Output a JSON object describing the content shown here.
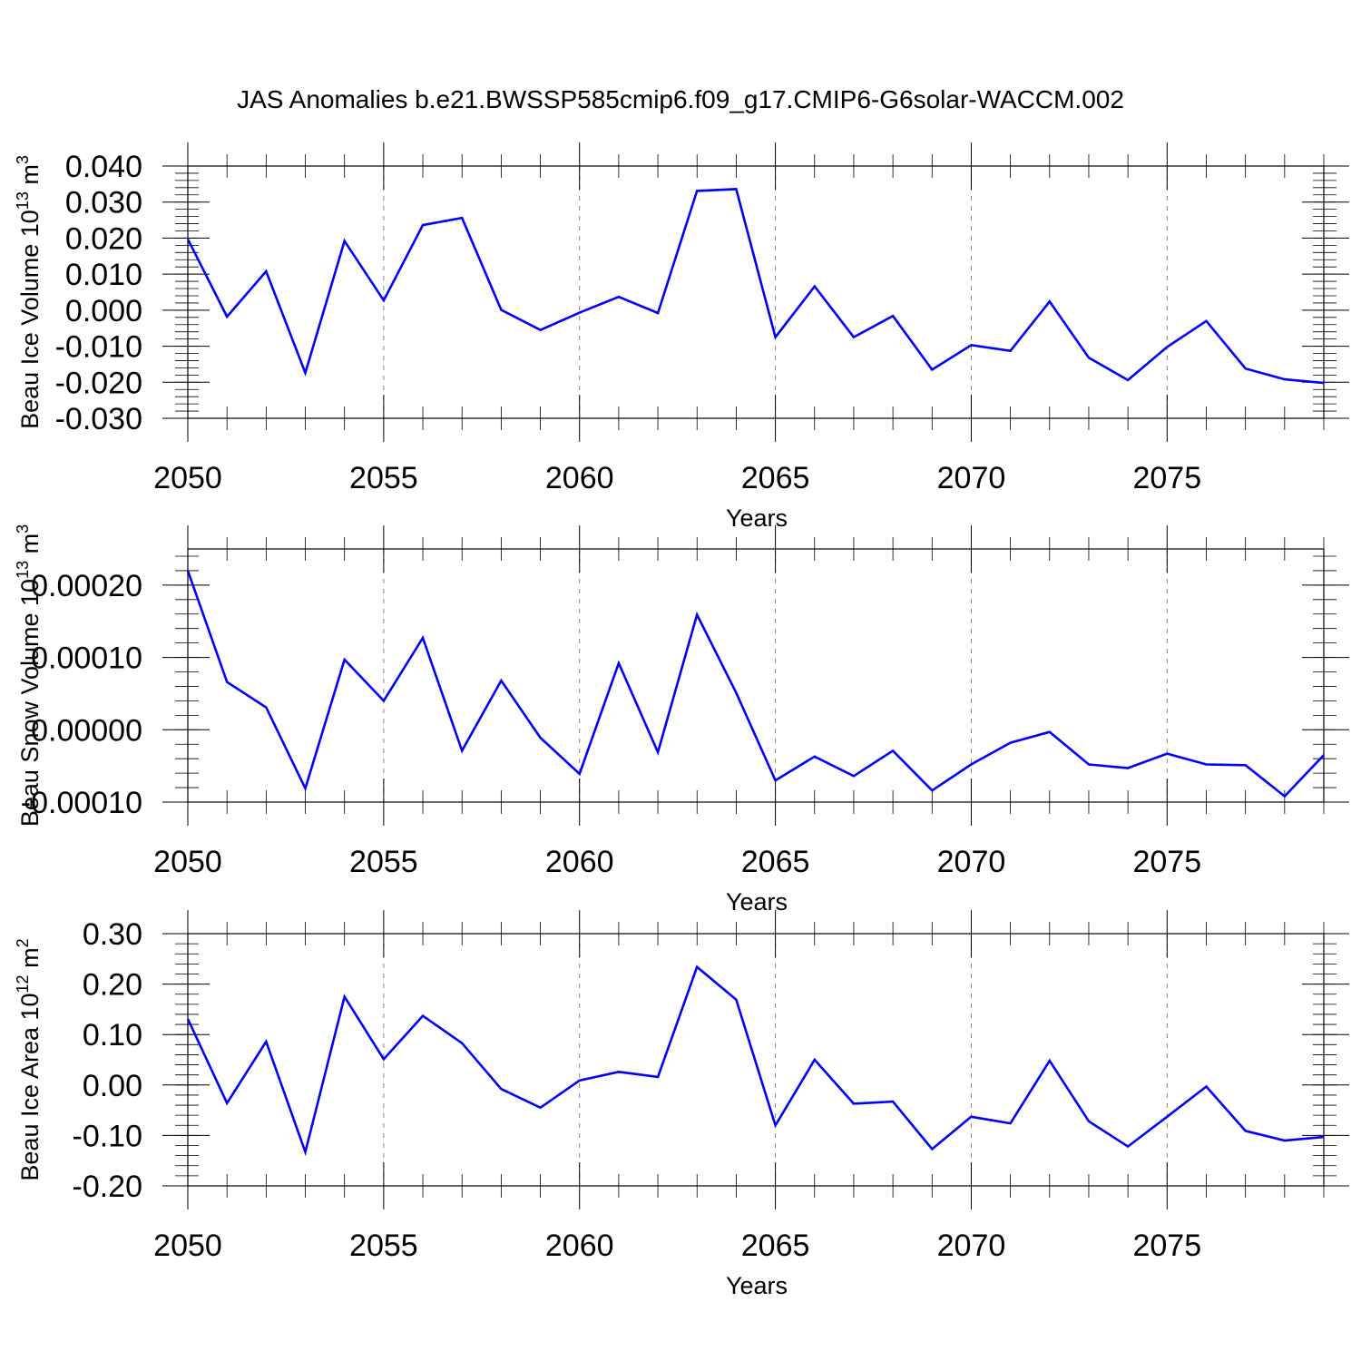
{
  "title": "JAS Anomalies b.e21.BWSSP585cmip6.f09_g17.CMIP6-G6solar-WACCM.002",
  "colors": {
    "line": "#0000ff",
    "grid": "#888888",
    "axis": "#000000"
  },
  "chart_data": [
    {
      "type": "line",
      "xlabel": "Years",
      "ylabel": {
        "main": "Beau Ice Volume 10",
        "exp": "13",
        "unit": " m",
        "unit_exp": "3"
      },
      "xlim": [
        2050,
        2079
      ],
      "ylim": [
        -0.03,
        0.04
      ],
      "x_major_ticks": [
        2050,
        2055,
        2060,
        2065,
        2070,
        2075
      ],
      "x_tick_labels": [
        "2050",
        "2055",
        "2060",
        "2065",
        "2070",
        "2075"
      ],
      "y_major_ticks": [
        0.04,
        0.03,
        0.02,
        0.01,
        0.0,
        -0.01,
        -0.02,
        -0.03
      ],
      "y_tick_labels": [
        "0.040",
        "0.030",
        "0.020",
        "0.010",
        "0.000",
        "-0.010",
        "-0.020",
        "-0.030"
      ],
      "y_minor_step": 0.002,
      "grid": "dashed vertical at major x ticks",
      "series": [
        {
          "name": "Beau Ice Volume anomaly",
          "x": [
            2050,
            2051,
            2052,
            2053,
            2054,
            2055,
            2056,
            2057,
            2058,
            2059,
            2060,
            2061,
            2062,
            2063,
            2064,
            2065,
            2066,
            2067,
            2068,
            2069,
            2070,
            2071,
            2072,
            2073,
            2074,
            2075,
            2076,
            2077,
            2078,
            2079
          ],
          "values": [
            0.0197,
            -0.0018,
            0.0108,
            -0.0174,
            0.0192,
            0.0027,
            0.0236,
            0.0256,
            0.0001,
            -0.0055,
            -0.0007,
            0.0037,
            -0.0008,
            0.0331,
            0.0336,
            -0.0075,
            0.0066,
            -0.0075,
            -0.0016,
            -0.0165,
            -0.0097,
            -0.0113,
            0.0024,
            -0.0132,
            -0.0194,
            -0.0102,
            -0.003,
            -0.0162,
            -0.0192,
            -0.0202
          ]
        }
      ]
    },
    {
      "type": "line",
      "xlabel": "Years",
      "ylabel": {
        "main": "Beau Snow Volume 10",
        "exp": "13",
        "unit": " m",
        "unit_exp": "3"
      },
      "xlim": [
        2050,
        2079
      ],
      "ylim": [
        -0.0001,
        0.00025
      ],
      "x_major_ticks": [
        2050,
        2055,
        2060,
        2065,
        2070,
        2075
      ],
      "x_tick_labels": [
        "2050",
        "2055",
        "2060",
        "2065",
        "2070",
        "2075"
      ],
      "y_major_ticks": [
        0.0002,
        0.0001,
        0.0,
        -0.0001
      ],
      "y_tick_labels": [
        "0.00020",
        "0.00010",
        "0.00000",
        "-0.00010"
      ],
      "y_minor_step": 2e-05,
      "grid": "dashed vertical at major x ticks",
      "series": [
        {
          "name": "Beau Snow Volume anomaly",
          "x": [
            2050,
            2051,
            2052,
            2053,
            2054,
            2055,
            2056,
            2057,
            2058,
            2059,
            2060,
            2061,
            2062,
            2063,
            2064,
            2065,
            2066,
            2067,
            2068,
            2069,
            2070,
            2071,
            2072,
            2073,
            2074,
            2075,
            2076,
            2077,
            2078,
            2079
          ],
          "values": [
            0.00022,
            6.6e-05,
            3.1e-05,
            -8.1e-05,
            9.7e-05,
            4e-05,
            0.000127,
            -2.9e-05,
            6.8e-05,
            -1.1e-05,
            -6.1e-05,
            9.2e-05,
            -3.1e-05,
            0.000159,
            5.1e-05,
            -7e-05,
            -3.7e-05,
            -6.4e-05,
            -2.9e-05,
            -8.4e-05,
            -4.8e-05,
            -1.8e-05,
            -3e-06,
            -4.8e-05,
            -5.3e-05,
            -3.3e-05,
            -4.8e-05,
            -4.9e-05,
            -9.2e-05,
            -3.5e-05
          ]
        }
      ]
    },
    {
      "type": "line",
      "xlabel": "Years",
      "ylabel": {
        "main": "Beau Ice Area 10",
        "exp": "12",
        "unit": " m",
        "unit_exp": "2"
      },
      "xlim": [
        2050,
        2079
      ],
      "ylim": [
        -0.2,
        0.3
      ],
      "x_major_ticks": [
        2050,
        2055,
        2060,
        2065,
        2070,
        2075
      ],
      "x_tick_labels": [
        "2050",
        "2055",
        "2060",
        "2065",
        "2070",
        "2075"
      ],
      "y_major_ticks": [
        0.3,
        0.2,
        0.1,
        0.0,
        -0.1,
        -0.2
      ],
      "y_tick_labels": [
        "0.30",
        "0.20",
        "0.10",
        "0.00",
        "-0.10",
        "-0.20"
      ],
      "y_minor_step": 0.02,
      "grid": "dashed vertical at major x ticks",
      "series": [
        {
          "name": "Beau Ice Area anomaly",
          "x": [
            2050,
            2051,
            2052,
            2053,
            2054,
            2055,
            2056,
            2057,
            2058,
            2059,
            2060,
            2061,
            2062,
            2063,
            2064,
            2065,
            2066,
            2067,
            2068,
            2069,
            2070,
            2071,
            2072,
            2073,
            2074,
            2075,
            2076,
            2077,
            2078,
            2079
          ],
          "values": [
            0.131,
            -0.036,
            0.086,
            -0.133,
            0.175,
            0.051,
            0.137,
            0.083,
            -0.008,
            -0.045,
            0.009,
            0.026,
            0.016,
            0.234,
            0.169,
            -0.08,
            0.05,
            -0.037,
            -0.033,
            -0.127,
            -0.063,
            -0.076,
            0.048,
            -0.072,
            -0.122,
            -0.063,
            -0.003,
            -0.091,
            -0.11,
            -0.103
          ]
        }
      ]
    }
  ]
}
